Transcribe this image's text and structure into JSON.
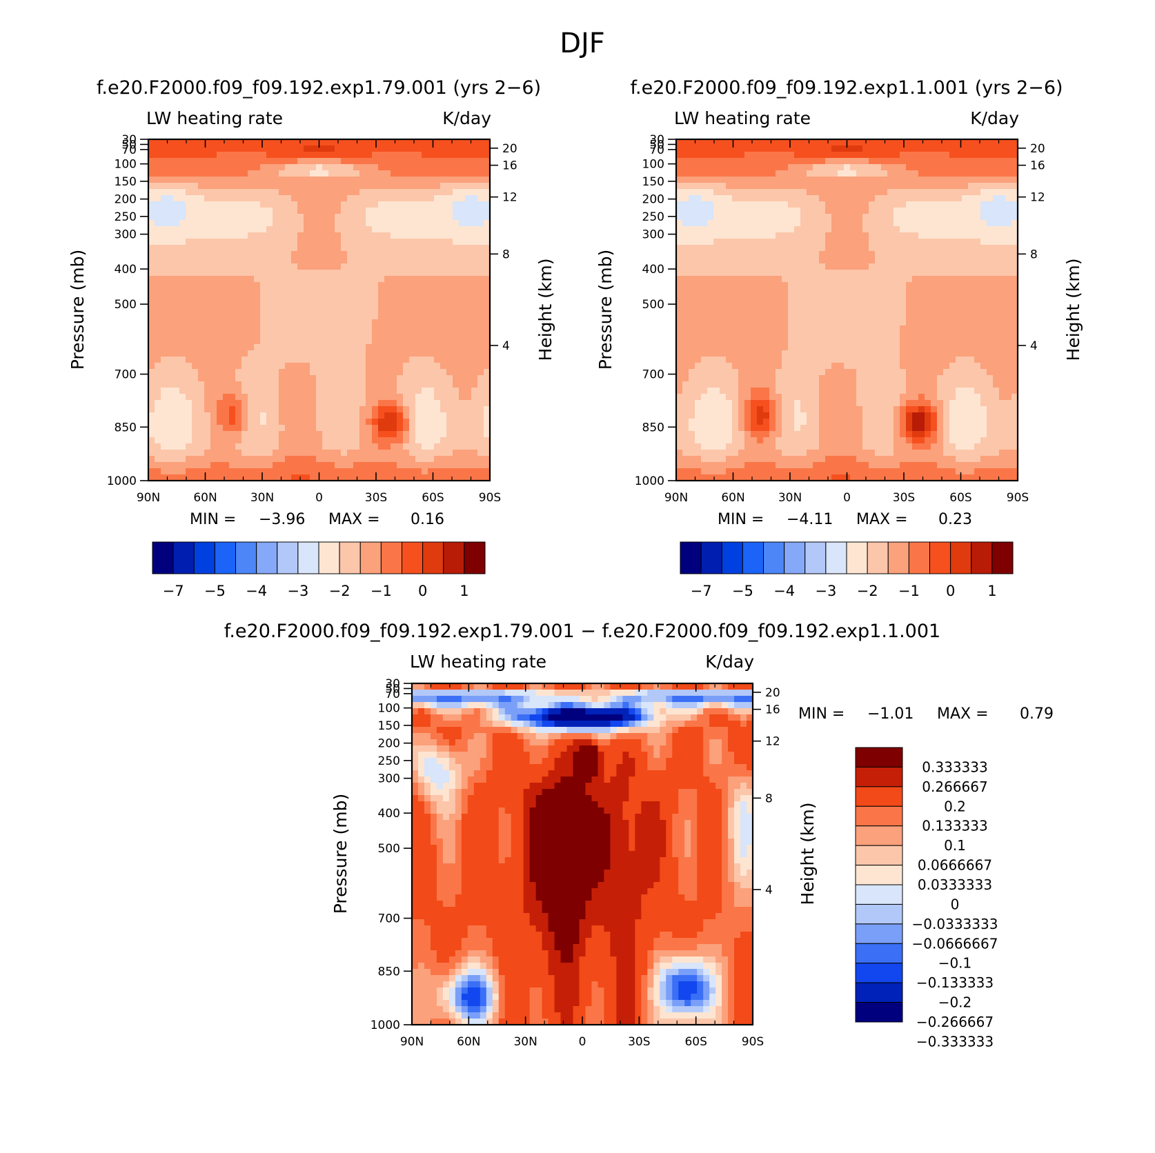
{
  "figure": {
    "title": "DJF"
  },
  "colors": {
    "diverging_16": [
      "#00007f",
      "#001eb0",
      "#0040e0",
      "#1c64f8",
      "#4c86f7",
      "#85a9f8",
      "#b2c8f8",
      "#d8e5fa",
      "#fde5d2",
      "#fcc6aa",
      "#fba17c",
      "#fa7648",
      "#f6501f",
      "#e03a0f",
      "#b81c07",
      "#7e0000"
    ],
    "diverging_14": [
      "#00007f",
      "#0022b8",
      "#1247ef",
      "#3a6ff6",
      "#7a9ff8",
      "#b2c8f8",
      "#d8e5fa",
      "#fde5d2",
      "#fcc6aa",
      "#fba17c",
      "#fa7648",
      "#f24a18",
      "#c51f07",
      "#7e0000"
    ]
  },
  "chart_data": [
    {
      "type": "heatmap",
      "title": "f.e20.F2000.f09_f09.192.exp1.79.001 (yrs 2−6)",
      "left_label": "LW heating rate",
      "right_label": "K/day",
      "xlabel": "",
      "ylabel": "Pressure (mb)",
      "y2label": "Height (km)",
      "x_ticks": [
        "90N",
        "60N",
        "30N",
        "0",
        "30S",
        "60S",
        "90S"
      ],
      "y_ticks": [
        "30",
        "50",
        "70",
        "100",
        "150",
        "200",
        "250",
        "300",
        "400",
        "500",
        "700",
        "850",
        "1000"
      ],
      "y2_ticks": [
        "20",
        "16",
        "12",
        "8",
        "4"
      ],
      "stats": {
        "min_label": "MIN =",
        "min": "−3.96",
        "max_label": "MAX =",
        "max": "0.16"
      },
      "colorbar": {
        "labels": [
          "−7",
          "−5",
          "−4",
          "−3",
          "−2",
          "−1",
          "0",
          "1"
        ],
        "label_positions": [
          1,
          3,
          5,
          7,
          9,
          11,
          13,
          15
        ]
      }
    },
    {
      "type": "heatmap",
      "title": "f.e20.F2000.f09_f09.192.exp1.1.001 (yrs 2−6)",
      "left_label": "LW heating rate",
      "right_label": "K/day",
      "xlabel": "",
      "ylabel": "Pressure (mb)",
      "y2label": "Height (km)",
      "x_ticks": [
        "90N",
        "60N",
        "30N",
        "0",
        "30S",
        "60S",
        "90S"
      ],
      "y_ticks": [
        "30",
        "50",
        "70",
        "100",
        "150",
        "200",
        "250",
        "300",
        "400",
        "500",
        "700",
        "850",
        "1000"
      ],
      "y2_ticks": [
        "20",
        "16",
        "12",
        "8",
        "4"
      ],
      "stats": {
        "min_label": "MIN =",
        "min": "−4.11",
        "max_label": "MAX =",
        "max": "0.23"
      },
      "colorbar": {
        "labels": [
          "−7",
          "−5",
          "−4",
          "−3",
          "−2",
          "−1",
          "0",
          "1"
        ],
        "label_positions": [
          1,
          3,
          5,
          7,
          9,
          11,
          13,
          15
        ]
      }
    },
    {
      "type": "heatmap",
      "title": "f.e20.F2000.f09_f09.192.exp1.79.001 − f.e20.F2000.f09_f09.192.exp1.1.001",
      "left_label": "LW heating rate",
      "right_label": "K/day",
      "xlabel": "",
      "ylabel": "Pressure (mb)",
      "y2label": "Height (km)",
      "x_ticks": [
        "90N",
        "60N",
        "30N",
        "0",
        "30S",
        "60S",
        "90S"
      ],
      "y_ticks": [
        "30",
        "50",
        "70",
        "100",
        "150",
        "200",
        "250",
        "300",
        "400",
        "500",
        "700",
        "850",
        "1000"
      ],
      "y2_ticks": [
        "20",
        "16",
        "12",
        "8",
        "4"
      ],
      "stats": {
        "min_label": "MIN =",
        "min": "−1.01",
        "max_label": "MAX =",
        "max": "0.79"
      },
      "colorbar": {
        "labels": [
          "0.333333",
          "0.266667",
          "0.2",
          "0.133333",
          "0.1",
          "0.0666667",
          "0.0333333",
          "0",
          "−0.0333333",
          "−0.0666667",
          "−0.1",
          "−0.133333",
          "−0.2",
          "−0.266667",
          "−0.333333"
        ]
      }
    }
  ]
}
